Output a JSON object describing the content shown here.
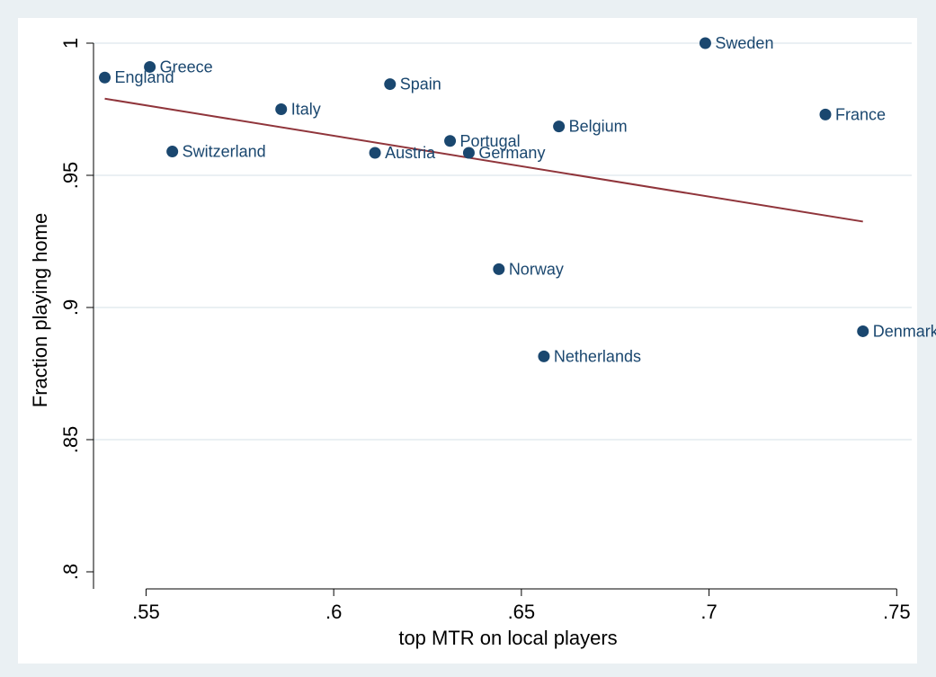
{
  "chart_data": {
    "type": "scatter",
    "title": "",
    "xlabel": "top MTR on local players",
    "ylabel": "Fraction playing home",
    "xlim": [
      0.536,
      0.754
    ],
    "ylim": [
      0.792,
      1.0
    ],
    "xticks": [
      0.55,
      0.6,
      0.65,
      0.7,
      0.75
    ],
    "xtick_labels": [
      ".55",
      ".6",
      ".65",
      ".7",
      ".75"
    ],
    "yticks": [
      0.8,
      0.85,
      0.9,
      0.95,
      1.0
    ],
    "ytick_labels": [
      ".8",
      ".85",
      ".9",
      ".95",
      "1"
    ],
    "grid": "horizontal",
    "marker_color": "#1a476f",
    "fit_line_color": "#90353b",
    "points": [
      {
        "label": "England",
        "x": 0.539,
        "y": 0.987
      },
      {
        "label": "Greece",
        "x": 0.551,
        "y": 0.991
      },
      {
        "label": "Switzerland",
        "x": 0.557,
        "y": 0.959
      },
      {
        "label": "Italy",
        "x": 0.586,
        "y": 0.975
      },
      {
        "label": "Austria",
        "x": 0.611,
        "y": 0.9585
      },
      {
        "label": "Spain",
        "x": 0.615,
        "y": 0.9845
      },
      {
        "label": "Portugal",
        "x": 0.631,
        "y": 0.963
      },
      {
        "label": "Germany",
        "x": 0.636,
        "y": 0.9585
      },
      {
        "label": "Norway",
        "x": 0.644,
        "y": 0.9145
      },
      {
        "label": "Netherlands",
        "x": 0.656,
        "y": 0.8815
      },
      {
        "label": "Belgium",
        "x": 0.66,
        "y": 0.9685
      },
      {
        "label": "Sweden",
        "x": 0.699,
        "y": 1.0
      },
      {
        "label": "France",
        "x": 0.731,
        "y": 0.973
      },
      {
        "label": "Denmark",
        "x": 0.741,
        "y": 0.891
      }
    ],
    "fit_line": {
      "x": [
        0.539,
        0.741
      ],
      "y": [
        0.979,
        0.9325
      ]
    }
  }
}
